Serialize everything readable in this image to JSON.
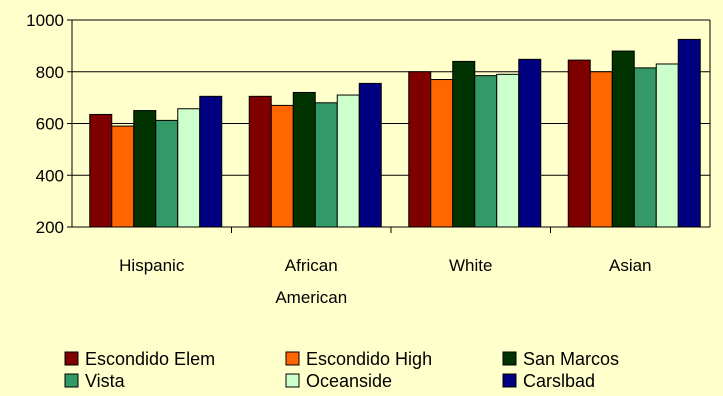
{
  "chart_data": {
    "type": "bar",
    "title": "",
    "xlabel": "",
    "ylabel": "",
    "categories": [
      [
        "Hispanic"
      ],
      [
        "African",
        "American"
      ],
      [
        "White"
      ],
      [
        "Asian"
      ]
    ],
    "ylim": [
      200,
      1000
    ],
    "yticks": [
      200,
      400,
      600,
      800,
      1000
    ],
    "grid": true,
    "legend_position": "bottom",
    "series": [
      {
        "name": "Escondido Elem",
        "color": "#800000",
        "values": [
          635,
          705,
          800,
          845
        ]
      },
      {
        "name": "Escondido High",
        "color": "#ff6600",
        "values": [
          590,
          670,
          770,
          800
        ]
      },
      {
        "name": "San Marcos",
        "color": "#003300",
        "values": [
          650,
          720,
          840,
          880
        ]
      },
      {
        "name": "Vista",
        "color": "#339966",
        "values": [
          612,
          680,
          785,
          815
        ]
      },
      {
        "name": "Oceanside",
        "color": "#ccffcc",
        "values": [
          657,
          710,
          790,
          830
        ]
      },
      {
        "name": "Carslbad",
        "color": "#000080",
        "values": [
          705,
          755,
          848,
          925
        ]
      }
    ]
  }
}
